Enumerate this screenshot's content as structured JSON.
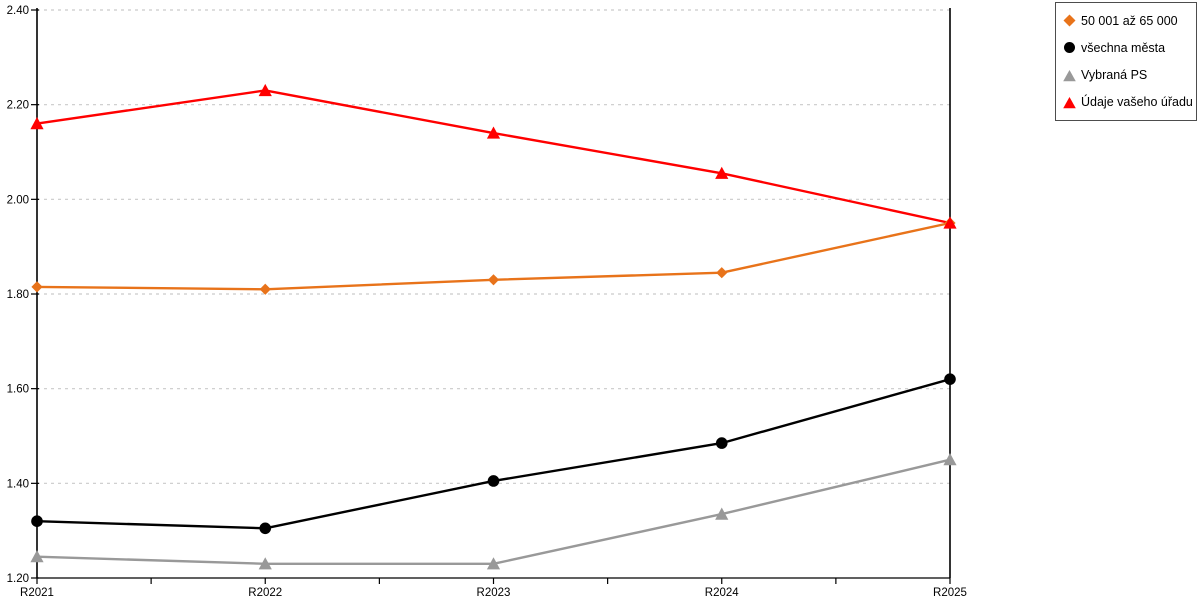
{
  "chart_data": {
    "type": "line",
    "title": "",
    "xlabel": "",
    "ylabel": "",
    "categories": [
      "R2021",
      "R2022",
      "R2023",
      "R2024",
      "R2025"
    ],
    "series": [
      {
        "name": "50 001 až 65 000",
        "color": "#E8731A",
        "marker": "diamond",
        "values": [
          1.815,
          1.81,
          1.83,
          1.845,
          1.95
        ]
      },
      {
        "name": "všechna města",
        "color": "#000000",
        "marker": "circle",
        "values": [
          1.32,
          1.305,
          1.405,
          1.485,
          1.62
        ]
      },
      {
        "name": "Vybraná PS",
        "color": "#999999",
        "marker": "triangle",
        "values": [
          1.245,
          1.23,
          1.23,
          1.335,
          1.45
        ]
      },
      {
        "name": "Údaje vašeho úřadu",
        "color": "#FF0000",
        "marker": "triangle",
        "values": [
          2.16,
          2.23,
          2.14,
          2.055,
          1.95
        ]
      }
    ],
    "ylim": [
      1.2,
      2.4
    ],
    "ytick_step": 0.2,
    "ytick_labels": [
      "1.20",
      "1.40",
      "1.60",
      "1.80",
      "2.00",
      "2.20",
      "2.40"
    ],
    "grid": "horizontal-dashed",
    "gridline_color": "#C9C9C9",
    "axis_color": "#000000",
    "legend_position": "top-right"
  }
}
